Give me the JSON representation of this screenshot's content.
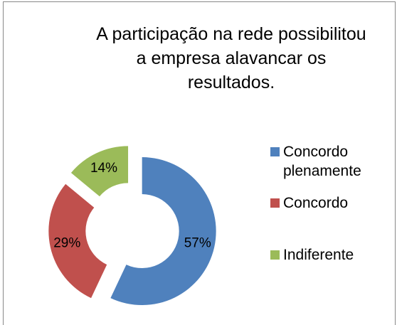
{
  "chart_data": {
    "type": "doughnut",
    "title": "A participação na rede possibilitou a empresa alavancar os resultados.",
    "categories": [
      "Concordo plenamente",
      "Concordo",
      "Indiferente"
    ],
    "values": [
      57,
      29,
      14
    ],
    "value_labels": [
      "57%",
      "29%",
      "14%"
    ],
    "colors": [
      "#4f81bd",
      "#c0504d",
      "#9bbb59"
    ],
    "legend": "right"
  }
}
